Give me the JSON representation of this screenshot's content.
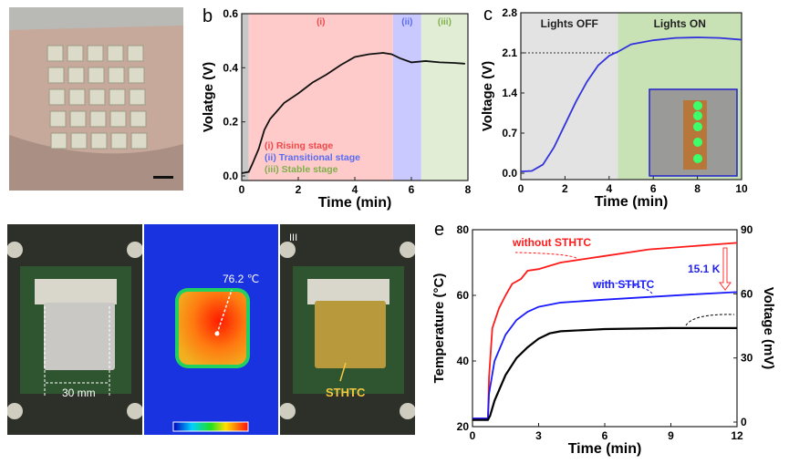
{
  "panel_labels": {
    "b": "b",
    "c": "c",
    "e": "e",
    "d_sub": "III"
  },
  "photo_d": {
    "dimension_label": "30 mm",
    "hotspot_label": "76.2 ℃",
    "coating_label": "STHTC"
  },
  "chart_data": [
    {
      "type": "line",
      "panel": "b",
      "xlabel": "Time (min)",
      "ylabel": "Volatge (V)",
      "xlim": [
        0,
        8
      ],
      "ylim": [
        0,
        0.6
      ],
      "xticks": [
        0,
        2,
        4,
        6,
        8
      ],
      "yticks": [
        "0.0",
        "0.2",
        "0.4",
        "0.6"
      ],
      "regions": [
        {
          "from": 0,
          "to": 0.25,
          "color": "#c8c8c8",
          "label": ""
        },
        {
          "from": 0.25,
          "to": 5.35,
          "color": "#ffcaca",
          "label": "(i)",
          "label_color": "#f04a4a"
        },
        {
          "from": 5.35,
          "to": 6.35,
          "color": "#c9c9ff",
          "label": "(ii)",
          "label_color": "#5a6cf0"
        },
        {
          "from": 6.35,
          "to": 8,
          "color": "#e2edd6",
          "label": "(iii)",
          "label_color": "#7fb04a"
        }
      ],
      "legend": [
        {
          "text": "(i) Rising stage",
          "color": "#f04a4a"
        },
        {
          "text": "(ii) Transitional stage",
          "color": "#5a6cf0"
        },
        {
          "text": "(iii) Stable stage",
          "color": "#7fb04a"
        }
      ],
      "series": [
        {
          "color": "#111111",
          "x": [
            0,
            0.25,
            0.4,
            0.6,
            0.8,
            1,
            1.5,
            2,
            2.5,
            3,
            3.5,
            4,
            4.5,
            5,
            5.3,
            5.6,
            6,
            6.5,
            7,
            7.5,
            7.9
          ],
          "y": [
            0.01,
            0.015,
            0.05,
            0.1,
            0.17,
            0.21,
            0.27,
            0.305,
            0.345,
            0.375,
            0.41,
            0.44,
            0.45,
            0.455,
            0.45,
            0.435,
            0.42,
            0.425,
            0.42,
            0.418,
            0.415
          ]
        }
      ]
    },
    {
      "type": "line",
      "panel": "c",
      "xlabel": "Time (min)",
      "ylabel": "Voltage (V)",
      "xlim": [
        0,
        10
      ],
      "ylim": [
        0,
        2.8
      ],
      "xticks": [
        0,
        2,
        4,
        6,
        8,
        10
      ],
      "yticks": [
        "0.0",
        "0.7",
        "1.4",
        "2.1",
        "2.8"
      ],
      "regions": [
        {
          "from": 0,
          "to": 4.4,
          "color": "#e3e3e3",
          "label": "Lights OFF",
          "label_color": "#222222"
        },
        {
          "from": 4.4,
          "to": 10,
          "color": "#c9e2b5",
          "label": "Lights ON",
          "label_color": "#222222"
        }
      ],
      "threshold": {
        "y": 2.1,
        "x_to": 4.4
      },
      "series": [
        {
          "color": "#3333dd",
          "x": [
            0,
            0.5,
            1,
            1.5,
            2,
            2.5,
            3,
            3.5,
            4,
            4.4,
            5,
            6,
            7,
            8,
            9,
            10
          ],
          "y": [
            0.03,
            0.04,
            0.15,
            0.45,
            0.85,
            1.25,
            1.6,
            1.88,
            2.05,
            2.12,
            2.25,
            2.32,
            2.36,
            2.37,
            2.36,
            2.33
          ]
        }
      ]
    },
    {
      "type": "line",
      "panel": "e",
      "xlabel": "Time (min)",
      "ylabel": "Temperature (°C)",
      "y2label": "Voltage (mV)",
      "xlim": [
        0,
        12
      ],
      "ylim": [
        20,
        80
      ],
      "y2lim": [
        0,
        90
      ],
      "xticks": [
        0,
        3,
        6,
        9,
        12
      ],
      "yticks": [
        "20",
        "40",
        "60",
        "80"
      ],
      "y2ticks": [
        "0",
        "30",
        "60",
        "90"
      ],
      "annotations": {
        "delta": "15.1 K"
      },
      "series": [
        {
          "name": "without STHTC",
          "axis": "left",
          "color": "#ff1a1a",
          "x": [
            0,
            0.7,
            0.75,
            0.9,
            1.2,
            1.5,
            1.8,
            2.2,
            2.5,
            3,
            4,
            5,
            6,
            8,
            10,
            12
          ],
          "y": [
            22.5,
            22.5,
            35,
            50,
            56,
            60,
            63.5,
            65,
            67.5,
            68,
            70,
            71,
            72,
            74,
            75,
            76
          ]
        },
        {
          "name": "with STHTC",
          "axis": "left",
          "color": "#1a1aff",
          "x": [
            0,
            0.7,
            0.75,
            1,
            1.5,
            2,
            2.5,
            3,
            4,
            6,
            8,
            10,
            12
          ],
          "y": [
            22.5,
            22.5,
            30,
            40,
            48,
            52.5,
            55,
            56.5,
            57.8,
            58.7,
            59.5,
            60.3,
            61
          ]
        },
        {
          "axis": "right",
          "color": "#000000",
          "x": [
            0,
            0.7,
            0.8,
            1,
            1.5,
            2,
            2.5,
            3,
            3.5,
            4,
            6,
            9,
            12
          ],
          "y": [
            1,
            1,
            3,
            10,
            22,
            30,
            35,
            39,
            41.5,
            42.5,
            43.5,
            44,
            44
          ]
        }
      ]
    }
  ]
}
